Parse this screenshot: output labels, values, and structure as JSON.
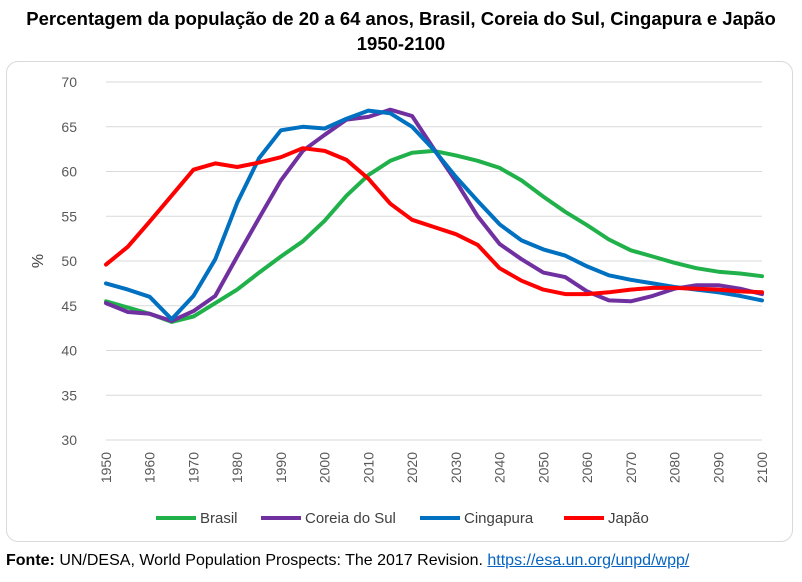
{
  "title_line1": "Percentagem da população de 20 a 64 anos, Brasil, Coreia do Sul, Cingapura e Japão",
  "title_line2": "1950-2100",
  "source": {
    "label": "Fonte:",
    "text": " UN/DESA, World Population Prospects: The 2017 Revision. ",
    "link": "https://esa.un.org/unpd/wpp/"
  },
  "chart_data": {
    "type": "line",
    "title": "Percentagem da população de 20 a 64 anos, Brasil, Coreia do Sul, Cingapura e Japão 1950-2100",
    "ylabel": "%",
    "xlabel": "",
    "ylim": [
      30,
      70
    ],
    "yticks": [
      30,
      35,
      40,
      45,
      50,
      55,
      60,
      65,
      70
    ],
    "xticks": [
      1950,
      1960,
      1970,
      1980,
      1990,
      2000,
      2010,
      2020,
      2030,
      2040,
      2050,
      2060,
      2070,
      2080,
      2090,
      2100
    ],
    "grid": true,
    "legend_position": "bottom",
    "x": [
      1950,
      1955,
      1960,
      1965,
      1970,
      1975,
      1980,
      1985,
      1990,
      1995,
      2000,
      2005,
      2010,
      2015,
      2020,
      2025,
      2030,
      2035,
      2040,
      2045,
      2050,
      2055,
      2060,
      2065,
      2070,
      2075,
      2080,
      2085,
      2090,
      2095,
      2100
    ],
    "series": [
      {
        "name": "Brasil",
        "color": "#21b14b",
        "values": [
          45.5,
          44.8,
          44.1,
          43.2,
          43.8,
          45.3,
          46.8,
          48.7,
          50.5,
          52.2,
          54.5,
          57.3,
          59.6,
          61.2,
          62.1,
          62.3,
          61.8,
          61.2,
          60.4,
          59.0,
          57.2,
          55.5,
          54.0,
          52.4,
          51.2,
          50.5,
          49.8,
          49.2,
          48.8,
          48.6,
          48.3
        ]
      },
      {
        "name": "Coreia do Sul",
        "color": "#7030a0",
        "values": [
          45.3,
          44.3,
          44.1,
          43.3,
          44.4,
          46.1,
          50.5,
          54.8,
          59.0,
          62.3,
          64.1,
          65.8,
          66.1,
          66.9,
          66.2,
          62.5,
          58.9,
          55.0,
          51.9,
          50.2,
          48.7,
          48.2,
          46.6,
          45.6,
          45.5,
          46.1,
          46.9,
          47.3,
          47.3,
          46.9,
          46.3
        ]
      },
      {
        "name": "Cingapura",
        "color": "#0070c0",
        "values": [
          47.5,
          46.8,
          46.0,
          43.5,
          46.1,
          50.2,
          56.5,
          61.5,
          64.6,
          65.0,
          64.8,
          65.9,
          66.8,
          66.5,
          65.0,
          62.4,
          59.4,
          56.7,
          54.1,
          52.3,
          51.3,
          50.6,
          49.4,
          48.4,
          47.9,
          47.5,
          47.1,
          46.8,
          46.5,
          46.1,
          45.6
        ]
      },
      {
        "name": "Japão",
        "color": "#ff0000",
        "values": [
          49.6,
          51.6,
          54.4,
          57.3,
          60.2,
          60.9,
          60.5,
          61.0,
          61.6,
          62.6,
          62.3,
          61.3,
          59.2,
          56.4,
          54.6,
          53.8,
          53.0,
          51.8,
          49.2,
          47.8,
          46.8,
          46.3,
          46.3,
          46.5,
          46.8,
          47.0,
          47.0,
          46.9,
          46.8,
          46.6,
          46.5
        ]
      }
    ]
  }
}
